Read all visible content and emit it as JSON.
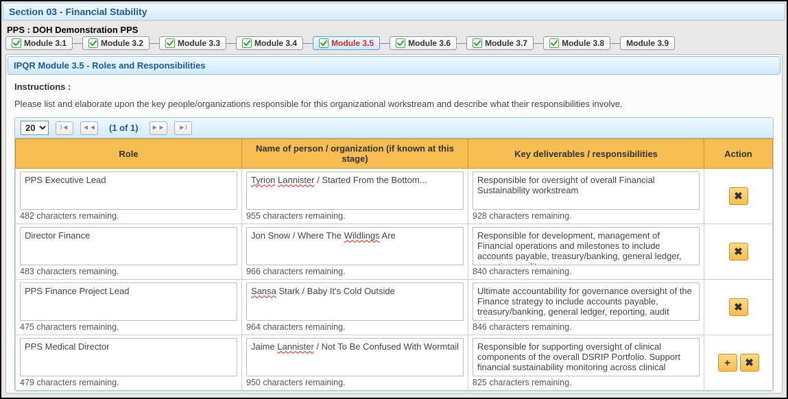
{
  "section": {
    "title": "Section 03 - Financial Stability"
  },
  "pps": {
    "label": "PPS : DOH Demonstration PPS"
  },
  "tabs": [
    {
      "label": "Module 3.1",
      "checked": true,
      "active": false
    },
    {
      "label": "Module 3.2",
      "checked": true,
      "active": false
    },
    {
      "label": "Module 3.3",
      "checked": true,
      "active": false
    },
    {
      "label": "Module 3.4",
      "checked": true,
      "active": false
    },
    {
      "label": "Module 3.5",
      "checked": true,
      "active": true
    },
    {
      "label": "Module 3.6",
      "checked": true,
      "active": false
    },
    {
      "label": "Module 3.7",
      "checked": true,
      "active": false
    },
    {
      "label": "Module 3.8",
      "checked": true,
      "active": false
    },
    {
      "label": "Module 3.9",
      "checked": false,
      "active": false
    }
  ],
  "module": {
    "title": "IPQR Module 3.5 - Roles and Responsibilities"
  },
  "instructions": {
    "label": "Instructions :",
    "text": "Please list and elaborate upon the key people/organizations responsible for this organizational workstream and describe what their responsibilities involve."
  },
  "paginator": {
    "page_size": "20",
    "page_info": "(1 of 1)"
  },
  "columns": {
    "role": "Role",
    "name": "Name of person / organization (if known at this stage)",
    "deliv": "Key deliverables / responsibilities",
    "action": "Action"
  },
  "rows": [
    {
      "role": "PPS Executive Lead",
      "role_remain": "482 characters remaining.",
      "name_html": "<span class='redwavy'>Tyrion</span> <span class='redwavy'>Lannister</span> / Started From the Bottom...",
      "name_remain": "955 characters remaining.",
      "deliv": "Responsible for oversight of overall Financial Sustainability workstream",
      "deliv_remain": "928 characters remaining.",
      "show_add": false,
      "scroll": false
    },
    {
      "role": "Director Finance",
      "role_remain": "483 characters remaining.",
      "name_html": "Jon Snow / Where The <span class='redwavy'>Wildlings</span> Are",
      "name_remain": "966 characters remaining.",
      "deliv": "Responsible for development, management of  Financial operations and milestones to include accounts payable, treasury/banking, general ledger, reporting, audit",
      "deliv_remain": "840 characters remaining.",
      "show_add": false,
      "scroll": false
    },
    {
      "role": "PPS Finance Project Lead",
      "role_remain": "475 characters remaining.",
      "name_html": "<span class='redwavy'>Sansa</span> Stark / Baby It's Cold Outside",
      "name_remain": "964 characters remaining.",
      "deliv": "Ultimate accountability for governance oversight of the Finance strategy to include accounts payable, treasury/banking, general ledger, reporting, audit",
      "deliv_remain": "846 characters remaining.",
      "show_add": false,
      "scroll": true
    },
    {
      "role": "PPS Medical Director",
      "role_remain": "479 characters remaining.",
      "name_html": "Jaime <span class='redwavy'>Lannister</span> / Not To Be Confused With Wormtail",
      "name_remain": "950 characters remaining.",
      "deliv": "Responsible for supporting oversight of clinical components of the overall DSRIP Portfolio. Support financial sustainability monitoring across clinical",
      "deliv_remain": "825 characters remaining.",
      "show_add": true,
      "scroll": true
    }
  ],
  "icons": {
    "check_color": "#3ca63c",
    "delete_label": "✖",
    "add_label": "+",
    "first": "⏮",
    "prev": "◀◀",
    "next": "▶▶",
    "last": "⏭"
  }
}
